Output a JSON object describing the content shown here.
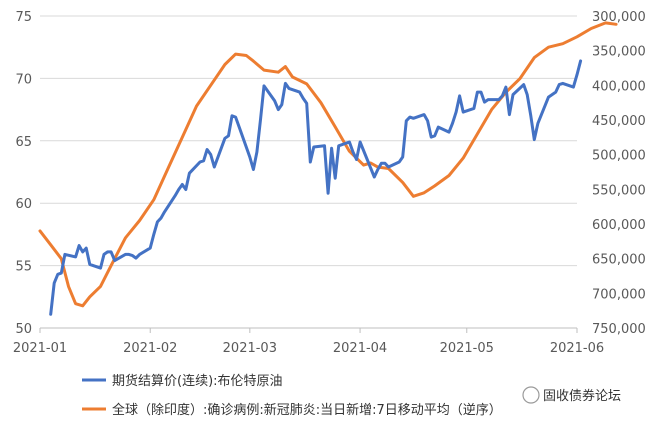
{
  "chart_data": {
    "type": "line",
    "x_labels": [
      "2021-01",
      "2021-02",
      "2021-03",
      "2021-04",
      "2021-05",
      "2021-06"
    ],
    "y_left": {
      "min": 50,
      "max": 75,
      "ticks": [
        50,
        55,
        60,
        65,
        70,
        75
      ]
    },
    "y_right": {
      "inverted": true,
      "min": 300000,
      "max": 750000,
      "tick_labels": [
        "300,000",
        "350,000",
        "400,000",
        "450,000",
        "500,000",
        "550,000",
        "600,000",
        "650,000",
        "700,000",
        "750,000"
      ]
    },
    "grid": "horizontal",
    "legend_position": "bottom",
    "series": [
      {
        "name": "期货结算价(连续):布伦特原油",
        "axis": "left",
        "color": "#4472C4",
        "points": [
          [
            "2021-01-04",
            51.1
          ],
          [
            "2021-01-05",
            53.6
          ],
          [
            "2021-01-06",
            54.3
          ],
          [
            "2021-01-07",
            54.4
          ],
          [
            "2021-01-08",
            55.9
          ],
          [
            "2021-01-11",
            55.7
          ],
          [
            "2021-01-12",
            56.6
          ],
          [
            "2021-01-13",
            56.1
          ],
          [
            "2021-01-14",
            56.4
          ],
          [
            "2021-01-15",
            55.1
          ],
          [
            "2021-01-18",
            54.8
          ],
          [
            "2021-01-19",
            55.9
          ],
          [
            "2021-01-20",
            56.1
          ],
          [
            "2021-01-21",
            56.1
          ],
          [
            "2021-01-22",
            55.4
          ],
          [
            "2021-01-25",
            55.9
          ],
          [
            "2021-01-26",
            55.9
          ],
          [
            "2021-01-27",
            55.8
          ],
          [
            "2021-01-28",
            55.6
          ],
          [
            "2021-01-29",
            55.9
          ],
          [
            "2021-02-01",
            56.4
          ],
          [
            "2021-02-02",
            57.5
          ],
          [
            "2021-02-03",
            58.5
          ],
          [
            "2021-02-04",
            58.8
          ],
          [
            "2021-02-05",
            59.3
          ],
          [
            "2021-02-08",
            60.6
          ],
          [
            "2021-02-09",
            61.1
          ],
          [
            "2021-02-10",
            61.5
          ],
          [
            "2021-02-11",
            61.1
          ],
          [
            "2021-02-12",
            62.4
          ],
          [
            "2021-02-15",
            63.3
          ],
          [
            "2021-02-16",
            63.4
          ],
          [
            "2021-02-17",
            64.3
          ],
          [
            "2021-02-18",
            63.9
          ],
          [
            "2021-02-19",
            62.9
          ],
          [
            "2021-02-22",
            65.2
          ],
          [
            "2021-02-23",
            65.4
          ],
          [
            "2021-02-24",
            67.0
          ],
          [
            "2021-02-25",
            66.9
          ],
          [
            "2021-02-26",
            66.1
          ],
          [
            "2021-03-01",
            63.7
          ],
          [
            "2021-03-02",
            62.7
          ],
          [
            "2021-03-03",
            64.1
          ],
          [
            "2021-03-04",
            66.7
          ],
          [
            "2021-03-05",
            69.4
          ],
          [
            "2021-03-08",
            68.2
          ],
          [
            "2021-03-09",
            67.5
          ],
          [
            "2021-03-10",
            67.9
          ],
          [
            "2021-03-11",
            69.6
          ],
          [
            "2021-03-12",
            69.2
          ],
          [
            "2021-03-15",
            68.9
          ],
          [
            "2021-03-16",
            68.4
          ],
          [
            "2021-03-17",
            68.0
          ],
          [
            "2021-03-18",
            63.3
          ],
          [
            "2021-03-19",
            64.5
          ],
          [
            "2021-03-22",
            64.6
          ],
          [
            "2021-03-23",
            60.8
          ],
          [
            "2021-03-24",
            64.4
          ],
          [
            "2021-03-25",
            62.0
          ],
          [
            "2021-03-26",
            64.6
          ],
          [
            "2021-03-29",
            64.9
          ],
          [
            "2021-03-30",
            64.1
          ],
          [
            "2021-03-31",
            63.5
          ],
          [
            "2021-04-01",
            64.9
          ],
          [
            "2021-04-05",
            62.1
          ],
          [
            "2021-04-06",
            62.7
          ],
          [
            "2021-04-07",
            63.2
          ],
          [
            "2021-04-08",
            63.2
          ],
          [
            "2021-04-09",
            62.9
          ],
          [
            "2021-04-12",
            63.3
          ],
          [
            "2021-04-13",
            63.7
          ],
          [
            "2021-04-14",
            66.6
          ],
          [
            "2021-04-15",
            66.9
          ],
          [
            "2021-04-16",
            66.8
          ],
          [
            "2021-04-19",
            67.1
          ],
          [
            "2021-04-20",
            66.6
          ],
          [
            "2021-04-21",
            65.3
          ],
          [
            "2021-04-22",
            65.4
          ],
          [
            "2021-04-23",
            66.1
          ],
          [
            "2021-04-26",
            65.7
          ],
          [
            "2021-04-27",
            66.4
          ],
          [
            "2021-04-28",
            67.3
          ],
          [
            "2021-04-29",
            68.6
          ],
          [
            "2021-04-30",
            67.3
          ],
          [
            "2021-05-03",
            67.6
          ],
          [
            "2021-05-04",
            68.9
          ],
          [
            "2021-05-05",
            68.9
          ],
          [
            "2021-05-06",
            68.1
          ],
          [
            "2021-05-07",
            68.3
          ],
          [
            "2021-05-10",
            68.3
          ],
          [
            "2021-05-11",
            68.6
          ],
          [
            "2021-05-12",
            69.3
          ],
          [
            "2021-05-13",
            67.1
          ],
          [
            "2021-05-14",
            68.7
          ],
          [
            "2021-05-17",
            69.5
          ],
          [
            "2021-05-18",
            68.7
          ],
          [
            "2021-05-19",
            67.0
          ],
          [
            "2021-05-20",
            65.1
          ],
          [
            "2021-05-21",
            66.4
          ],
          [
            "2021-05-24",
            68.5
          ],
          [
            "2021-05-25",
            68.7
          ],
          [
            "2021-05-26",
            68.9
          ],
          [
            "2021-05-27",
            69.5
          ],
          [
            "2021-05-28",
            69.6
          ],
          [
            "2021-05-31",
            69.3
          ],
          [
            "2021-06-01",
            70.3
          ],
          [
            "2021-06-02",
            71.4
          ]
        ]
      },
      {
        "name": "全球（除印度）:确诊病例:新冠肺炎:当日新增:7日移动平均（逆序）",
        "axis": "right",
        "color": "#ED7D31",
        "points": [
          [
            "2021-01-01",
            610000
          ],
          [
            "2021-01-04",
            630000
          ],
          [
            "2021-01-07",
            650000
          ],
          [
            "2021-01-09",
            690000
          ],
          [
            "2021-01-11",
            715000
          ],
          [
            "2021-01-13",
            718000
          ],
          [
            "2021-01-15",
            705000
          ],
          [
            "2021-01-18",
            690000
          ],
          [
            "2021-01-21",
            660000
          ],
          [
            "2021-01-25",
            620000
          ],
          [
            "2021-01-29",
            595000
          ],
          [
            "2021-02-02",
            565000
          ],
          [
            "2021-02-06",
            520000
          ],
          [
            "2021-02-10",
            475000
          ],
          [
            "2021-02-14",
            430000
          ],
          [
            "2021-02-18",
            400000
          ],
          [
            "2021-02-22",
            370000
          ],
          [
            "2021-02-25",
            355000
          ],
          [
            "2021-02-28",
            357000
          ],
          [
            "2021-03-02",
            365000
          ],
          [
            "2021-03-05",
            378000
          ],
          [
            "2021-03-09",
            381000
          ],
          [
            "2021-03-11",
            373000
          ],
          [
            "2021-03-13",
            388000
          ],
          [
            "2021-03-17",
            398000
          ],
          [
            "2021-03-21",
            425000
          ],
          [
            "2021-03-25",
            460000
          ],
          [
            "2021-03-29",
            495000
          ],
          [
            "2021-04-02",
            515000
          ],
          [
            "2021-04-04",
            512000
          ],
          [
            "2021-04-06",
            518000
          ],
          [
            "2021-04-09",
            520000
          ],
          [
            "2021-04-13",
            540000
          ],
          [
            "2021-04-16",
            560000
          ],
          [
            "2021-04-19",
            555000
          ],
          [
            "2021-04-22",
            545000
          ],
          [
            "2021-04-26",
            530000
          ],
          [
            "2021-04-30",
            505000
          ],
          [
            "2021-05-04",
            470000
          ],
          [
            "2021-05-08",
            435000
          ],
          [
            "2021-05-12",
            410000
          ],
          [
            "2021-05-16",
            390000
          ],
          [
            "2021-05-20",
            360000
          ],
          [
            "2021-05-24",
            345000
          ],
          [
            "2021-05-28",
            340000
          ],
          [
            "2021-06-01",
            330000
          ],
          [
            "2021-06-05",
            318000
          ],
          [
            "2021-06-09",
            310000
          ],
          [
            "2021-06-12",
            312000
          ]
        ]
      }
    ]
  },
  "legend": [
    {
      "label": "期货结算价(连续):布伦特原油",
      "color": "#4472C4"
    },
    {
      "label": "全球（除印度）:确诊病例:新冠肺炎:当日新增:7日移动平均（逆序）",
      "color": "#ED7D31"
    }
  ],
  "watermark": {
    "text": "固收债券论坛"
  }
}
